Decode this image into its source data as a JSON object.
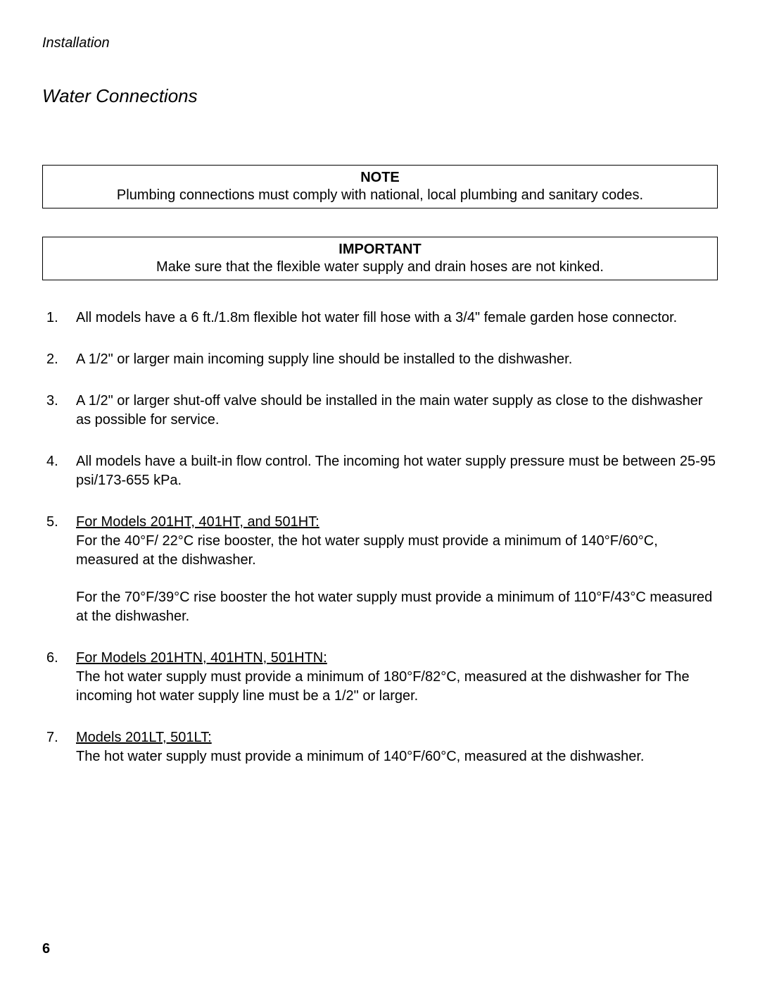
{
  "breadcrumb": "Installation",
  "section_title": "Water Connections",
  "note_box": {
    "title": "NOTE",
    "text": "Plumbing connections must comply with national, local plumbing and sanitary codes."
  },
  "important_box": {
    "title": "IMPORTANT",
    "text": "Make sure that the flexible water supply and drain hoses are not kinked."
  },
  "items": {
    "i1": {
      "num": "1.",
      "text": "All models have a 6 ft./1.8m flexible hot water fill hose with a 3/4\" female garden hose connector."
    },
    "i2": {
      "num": "2.",
      "text": "A 1/2\" or larger main incoming supply line should be installed to the dishwasher."
    },
    "i3": {
      "num": "3.",
      "text": "A 1/2\" or larger shut-off valve should be installed in the main water supply as close to the dishwasher as possible for service."
    },
    "i4": {
      "num": "4.",
      "text": "All models have a built-in flow control. The incoming hot water supply pressure must be between 25-95 psi/173-655 kPa."
    },
    "i5": {
      "num": "5.",
      "heading": "For Models 201HT, 401HT, and 501HT:",
      "p1": "For the 40°F/ 22°C rise booster, the hot water supply must provide a minimum of 140°F/60°C, measured at the dishwasher.",
      "p2": "For the 70°F/39°C rise booster the hot water supply must provide a minimum of 110°F/43°C measured at the dishwasher."
    },
    "i6": {
      "num": "6.",
      "heading": "For Models 201HTN, 401HTN, 501HTN:",
      "p1": "The hot water supply must provide a minimum of 180°F/82°C, measured at the dishwasher for The incoming hot water supply line must be a 1/2\" or larger."
    },
    "i7": {
      "num": "7.",
      "heading": "Models 201LT, 501LT:",
      "p1": " The hot water supply must provide a minimum of 140°F/60°C, measured at the dishwasher."
    }
  },
  "page_number": "6"
}
